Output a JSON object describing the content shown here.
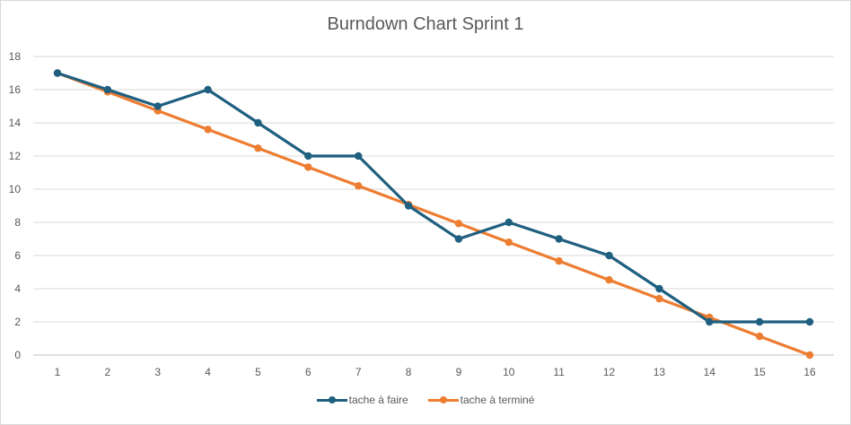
{
  "chart_data": {
    "type": "line",
    "title": "Burndown Chart Sprint 1",
    "x": [
      1,
      2,
      3,
      4,
      5,
      6,
      7,
      8,
      9,
      10,
      11,
      12,
      13,
      14,
      15,
      16
    ],
    "x_tick_labels": [
      "1",
      "2",
      "3",
      "4",
      "5",
      "6",
      "7",
      "8",
      "9",
      "10",
      "11",
      "12",
      "13",
      "14",
      "15",
      "16"
    ],
    "y_tick_labels": [
      "0",
      "2",
      "4",
      "6",
      "8",
      "10",
      "12",
      "14",
      "16",
      "18"
    ],
    "ylim": [
      0,
      18
    ],
    "grid": true,
    "legend_position": "bottom",
    "series": [
      {
        "name": "tache à faire",
        "color": "#1f5f7f",
        "values": [
          17,
          16,
          15,
          16,
          14,
          12,
          12,
          9,
          7,
          8,
          7,
          6,
          4,
          2,
          2,
          2
        ]
      },
      {
        "name": "tache à terminé",
        "color": "#ed7d31",
        "values": [
          17,
          15.87,
          14.73,
          13.6,
          12.47,
          11.33,
          10.2,
          9.07,
          7.93,
          6.8,
          5.67,
          4.53,
          3.4,
          2.27,
          1.13,
          0
        ]
      }
    ]
  }
}
